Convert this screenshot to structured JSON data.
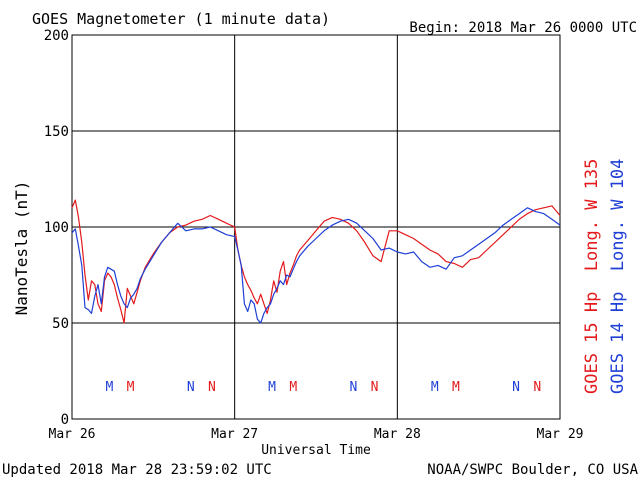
{
  "chart_data": {
    "type": "line",
    "title": "GOES Magnetometer (1 minute data)",
    "begin": "Begin:  2018 Mar 26 0000 UTC",
    "ylabel": "NanoTesla (nT)",
    "xlabel": "Universal Time",
    "ylim": [
      0,
      200
    ],
    "yticks": [
      "0",
      "50",
      "100",
      "150",
      "200"
    ],
    "xlim": [
      0,
      3
    ],
    "xticks": [
      "Mar 26",
      "Mar 27",
      "Mar 28",
      "Mar 29"
    ],
    "grid": true,
    "legend_placement": "right, vertical",
    "series": [
      {
        "name": "GOES 15 Hp  Long. W 135",
        "color": "#e41a1c",
        "x": [
          0,
          0.02,
          0.04,
          0.06,
          0.08,
          0.1,
          0.12,
          0.14,
          0.16,
          0.18,
          0.2,
          0.22,
          0.24,
          0.26,
          0.28,
          0.3,
          0.32,
          0.34,
          0.36,
          0.38,
          0.4,
          0.42,
          0.45,
          0.5,
          0.55,
          0.6,
          0.65,
          0.7,
          0.75,
          0.8,
          0.85,
          0.9,
          0.95,
          1.0,
          1.02,
          1.04,
          1.06,
          1.08,
          1.1,
          1.12,
          1.14,
          1.16,
          1.18,
          1.2,
          1.22,
          1.24,
          1.26,
          1.28,
          1.3,
          1.32,
          1.34,
          1.36,
          1.38,
          1.4,
          1.45,
          1.5,
          1.55,
          1.6,
          1.65,
          1.7,
          1.75,
          1.8,
          1.85,
          1.9,
          1.95,
          2.0,
          2.05,
          2.1,
          2.15,
          2.2,
          2.25,
          2.3,
          2.35,
          2.4,
          2.45,
          2.5,
          2.55,
          2.6,
          2.65,
          2.7,
          2.75,
          2.8,
          2.85,
          2.9,
          2.95,
          3.0
        ],
        "y": [
          110,
          114,
          105,
          92,
          75,
          62,
          72,
          70,
          60,
          56,
          72,
          76,
          74,
          70,
          63,
          57,
          50,
          68,
          64,
          60,
          66,
          72,
          79,
          86,
          92,
          97,
          100,
          101,
          103,
          104,
          106,
          104,
          102,
          100,
          88,
          80,
          74,
          70,
          67,
          63,
          60,
          65,
          60,
          55,
          62,
          72,
          66,
          77,
          82,
          70,
          76,
          80,
          85,
          88,
          93,
          98,
          103,
          105,
          104,
          102,
          98,
          92,
          85,
          82,
          98,
          98,
          96,
          94,
          91,
          88,
          86,
          82,
          81,
          79,
          83,
          84,
          88,
          92,
          96,
          100,
          104,
          107,
          109,
          110,
          111,
          106
        ]
      },
      {
        "name": "GOES 14 Hp  Long. W 104",
        "color": "#1f3fd6",
        "x": [
          0,
          0.02,
          0.04,
          0.06,
          0.08,
          0.1,
          0.12,
          0.14,
          0.16,
          0.18,
          0.2,
          0.22,
          0.24,
          0.26,
          0.28,
          0.3,
          0.32,
          0.34,
          0.36,
          0.38,
          0.4,
          0.42,
          0.45,
          0.5,
          0.55,
          0.6,
          0.65,
          0.7,
          0.75,
          0.8,
          0.85,
          0.9,
          0.95,
          1.0,
          1.02,
          1.04,
          1.06,
          1.08,
          1.1,
          1.12,
          1.14,
          1.16,
          1.18,
          1.2,
          1.22,
          1.24,
          1.26,
          1.28,
          1.3,
          1.32,
          1.34,
          1.36,
          1.38,
          1.4,
          1.45,
          1.5,
          1.55,
          1.6,
          1.65,
          1.7,
          1.75,
          1.8,
          1.85,
          1.9,
          1.95,
          2.0,
          2.05,
          2.1,
          2.15,
          2.2,
          2.25,
          2.3,
          2.35,
          2.4,
          2.45,
          2.5,
          2.55,
          2.6,
          2.65,
          2.7,
          2.75,
          2.8,
          2.85,
          2.9,
          2.95,
          3.0
        ],
        "y": [
          97,
          99,
          90,
          80,
          58,
          57,
          55,
          64,
          70,
          60,
          74,
          79,
          78,
          77,
          70,
          64,
          60,
          58,
          63,
          65,
          68,
          73,
          78,
          85,
          92,
          97,
          102,
          98,
          99,
          99,
          100,
          98,
          96,
          95,
          88,
          80,
          60,
          56,
          62,
          60,
          52,
          50,
          55,
          58,
          60,
          65,
          68,
          72,
          70,
          75,
          74,
          78,
          82,
          85,
          90,
          94,
          98,
          101,
          103,
          104,
          102,
          98,
          94,
          88,
          89,
          87,
          86,
          87,
          82,
          79,
          80,
          78,
          84,
          85,
          88,
          91,
          94,
          97,
          101,
          104,
          107,
          110,
          108,
          107,
          104,
          101
        ]
      }
    ],
    "annotations": [
      {
        "text": "M",
        "x": 0.23,
        "series": 1
      },
      {
        "text": "M",
        "x": 0.36,
        "series": 0
      },
      {
        "text": "N",
        "x": 0.73,
        "series": 1
      },
      {
        "text": "N",
        "x": 0.86,
        "series": 0
      },
      {
        "text": "M",
        "x": 1.23,
        "series": 1
      },
      {
        "text": "M",
        "x": 1.36,
        "series": 0
      },
      {
        "text": "N",
        "x": 1.73,
        "series": 1
      },
      {
        "text": "N",
        "x": 1.86,
        "series": 0
      },
      {
        "text": "M",
        "x": 2.23,
        "series": 1
      },
      {
        "text": "M",
        "x": 2.36,
        "series": 0
      },
      {
        "text": "N",
        "x": 2.73,
        "series": 1
      },
      {
        "text": "N",
        "x": 2.86,
        "series": 0
      }
    ]
  },
  "footer": {
    "updated": "Updated 2018 Mar 28 23:59:02 UTC",
    "credit": "NOAA/SWPC Boulder, CO USA"
  }
}
